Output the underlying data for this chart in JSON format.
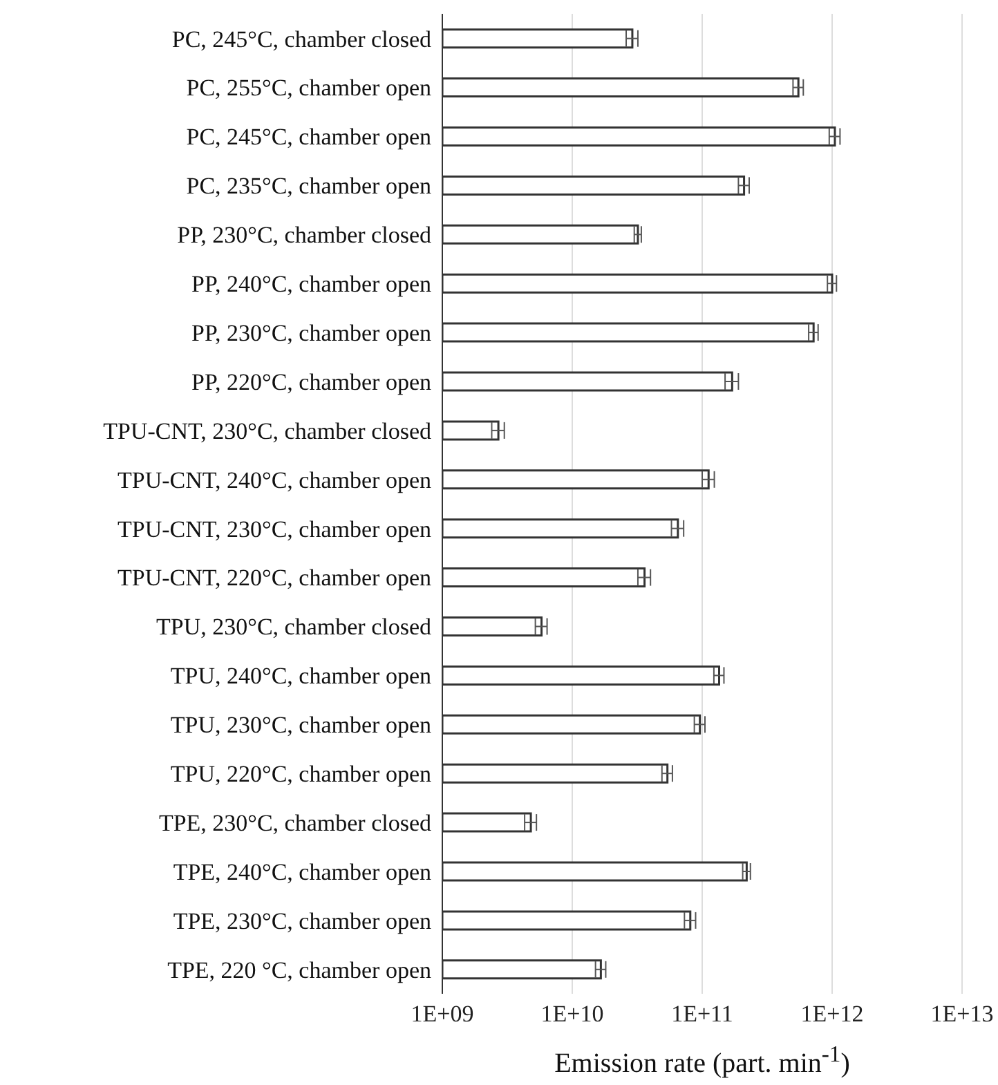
{
  "chart_data": {
    "type": "bar",
    "orientation": "horizontal",
    "log": "x",
    "xlabel": "Emission rate (part. min$^{-1}$)",
    "categories": [
      "PC, 245°C, chamber closed",
      "PC, 255°C, chamber open",
      "PC, 245°C, chamber open",
      "PC, 235°C, chamber open",
      "PP, 230°C, chamber closed",
      "PP, 240°C, chamber open",
      "PP, 230°C, chamber open",
      "PP, 220°C, chamber open",
      "TPU-CNT, 230°C, chamber closed",
      "TPU-CNT, 240°C, chamber open",
      "TPU-CNT, 230°C, chamber open",
      "TPU-CNT, 220°C, chamber open",
      "TPU, 230°C, chamber closed",
      "TPU, 240°C, chamber open",
      "TPU, 230°C, chamber open",
      "TPU, 220°C, chamber open",
      "TPE, 230°C, chamber closed",
      "TPE, 240°C, chamber open",
      "TPE, 230°C, chamber open",
      "TPE, 220 °C, chamber open"
    ],
    "values": [
      29000000000.0,
      550000000000.0,
      1050000000000.0,
      210000000000.0,
      32000000000.0,
      1000000000000.0,
      720000000000.0,
      170000000000.0,
      2700000000.0,
      112000000000.0,
      65000000000.0,
      36000000000.0,
      5800000000.0,
      135000000000.0,
      96000000000.0,
      54000000000.0,
      4800000000.0,
      220000000000.0,
      81000000000.0,
      16600000000.0
    ],
    "errors": [
      3000000000.0,
      50000000000.0,
      100000000000.0,
      20000000000.0,
      2000000000.0,
      80000000000.0,
      60000000000.0,
      20000000000.0,
      300000000.0,
      12000000000.0,
      7000000000.0,
      4000000000.0,
      600000000.0,
      12000000000.0,
      9000000000.0,
      5000000000.0,
      500000000.0,
      15000000000.0,
      8000000000.0,
      1500000000.0
    ],
    "color": "#ffffff",
    "xlim": [
      1000000000.0,
      10000000000000.0
    ],
    "xticks": [
      {
        "value": 1000000000.0,
        "label": "1E+09"
      },
      {
        "value": 10000000000.0,
        "label": "1E+10"
      },
      {
        "value": 100000000000.0,
        "label": "1E+11"
      },
      {
        "value": 1000000000000.0,
        "label": "1E+12"
      },
      {
        "value": 10000000000000.0,
        "label": "1E+13"
      }
    ],
    "grid": "x",
    "legend": false
  }
}
